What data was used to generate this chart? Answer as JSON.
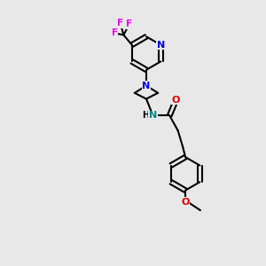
{
  "background_color": "#e8e8e8",
  "N_color": "#0000dd",
  "N_amide_color": "#008888",
  "O_color": "#dd0000",
  "F_color": "#ee00ee",
  "bond_color": "#000000",
  "lw": 1.5,
  "fontsize": 7.5,
  "xlim": [
    0,
    10
  ],
  "ylim": [
    -14,
    2
  ]
}
